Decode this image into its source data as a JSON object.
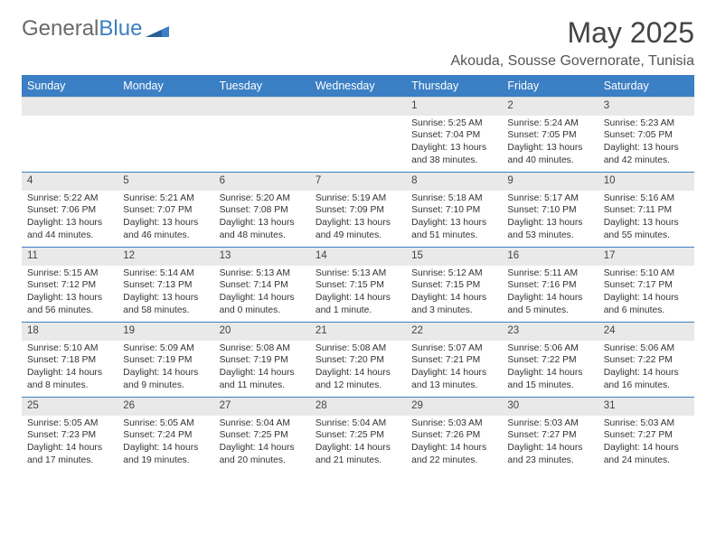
{
  "logo": {
    "text1": "General",
    "text2": "Blue"
  },
  "title": "May 2025",
  "subtitle": "Akouda, Sousse Governorate, Tunisia",
  "day_headers": [
    "Sunday",
    "Monday",
    "Tuesday",
    "Wednesday",
    "Thursday",
    "Friday",
    "Saturday"
  ],
  "colors": {
    "header_bg": "#3b7fc4",
    "header_text": "#ffffff",
    "daynum_bg": "#e9e9e9",
    "row_border": "#3b7fc4"
  },
  "weeks": [
    [
      null,
      null,
      null,
      null,
      {
        "day": "1",
        "sunrise": "Sunrise: 5:25 AM",
        "sunset": "Sunset: 7:04 PM",
        "daylight": "Daylight: 13 hours and 38 minutes."
      },
      {
        "day": "2",
        "sunrise": "Sunrise: 5:24 AM",
        "sunset": "Sunset: 7:05 PM",
        "daylight": "Daylight: 13 hours and 40 minutes."
      },
      {
        "day": "3",
        "sunrise": "Sunrise: 5:23 AM",
        "sunset": "Sunset: 7:05 PM",
        "daylight": "Daylight: 13 hours and 42 minutes."
      }
    ],
    [
      {
        "day": "4",
        "sunrise": "Sunrise: 5:22 AM",
        "sunset": "Sunset: 7:06 PM",
        "daylight": "Daylight: 13 hours and 44 minutes."
      },
      {
        "day": "5",
        "sunrise": "Sunrise: 5:21 AM",
        "sunset": "Sunset: 7:07 PM",
        "daylight": "Daylight: 13 hours and 46 minutes."
      },
      {
        "day": "6",
        "sunrise": "Sunrise: 5:20 AM",
        "sunset": "Sunset: 7:08 PM",
        "daylight": "Daylight: 13 hours and 48 minutes."
      },
      {
        "day": "7",
        "sunrise": "Sunrise: 5:19 AM",
        "sunset": "Sunset: 7:09 PM",
        "daylight": "Daylight: 13 hours and 49 minutes."
      },
      {
        "day": "8",
        "sunrise": "Sunrise: 5:18 AM",
        "sunset": "Sunset: 7:10 PM",
        "daylight": "Daylight: 13 hours and 51 minutes."
      },
      {
        "day": "9",
        "sunrise": "Sunrise: 5:17 AM",
        "sunset": "Sunset: 7:10 PM",
        "daylight": "Daylight: 13 hours and 53 minutes."
      },
      {
        "day": "10",
        "sunrise": "Sunrise: 5:16 AM",
        "sunset": "Sunset: 7:11 PM",
        "daylight": "Daylight: 13 hours and 55 minutes."
      }
    ],
    [
      {
        "day": "11",
        "sunrise": "Sunrise: 5:15 AM",
        "sunset": "Sunset: 7:12 PM",
        "daylight": "Daylight: 13 hours and 56 minutes."
      },
      {
        "day": "12",
        "sunrise": "Sunrise: 5:14 AM",
        "sunset": "Sunset: 7:13 PM",
        "daylight": "Daylight: 13 hours and 58 minutes."
      },
      {
        "day": "13",
        "sunrise": "Sunrise: 5:13 AM",
        "sunset": "Sunset: 7:14 PM",
        "daylight": "Daylight: 14 hours and 0 minutes."
      },
      {
        "day": "14",
        "sunrise": "Sunrise: 5:13 AM",
        "sunset": "Sunset: 7:15 PM",
        "daylight": "Daylight: 14 hours and 1 minute."
      },
      {
        "day": "15",
        "sunrise": "Sunrise: 5:12 AM",
        "sunset": "Sunset: 7:15 PM",
        "daylight": "Daylight: 14 hours and 3 minutes."
      },
      {
        "day": "16",
        "sunrise": "Sunrise: 5:11 AM",
        "sunset": "Sunset: 7:16 PM",
        "daylight": "Daylight: 14 hours and 5 minutes."
      },
      {
        "day": "17",
        "sunrise": "Sunrise: 5:10 AM",
        "sunset": "Sunset: 7:17 PM",
        "daylight": "Daylight: 14 hours and 6 minutes."
      }
    ],
    [
      {
        "day": "18",
        "sunrise": "Sunrise: 5:10 AM",
        "sunset": "Sunset: 7:18 PM",
        "daylight": "Daylight: 14 hours and 8 minutes."
      },
      {
        "day": "19",
        "sunrise": "Sunrise: 5:09 AM",
        "sunset": "Sunset: 7:19 PM",
        "daylight": "Daylight: 14 hours and 9 minutes."
      },
      {
        "day": "20",
        "sunrise": "Sunrise: 5:08 AM",
        "sunset": "Sunset: 7:19 PM",
        "daylight": "Daylight: 14 hours and 11 minutes."
      },
      {
        "day": "21",
        "sunrise": "Sunrise: 5:08 AM",
        "sunset": "Sunset: 7:20 PM",
        "daylight": "Daylight: 14 hours and 12 minutes."
      },
      {
        "day": "22",
        "sunrise": "Sunrise: 5:07 AM",
        "sunset": "Sunset: 7:21 PM",
        "daylight": "Daylight: 14 hours and 13 minutes."
      },
      {
        "day": "23",
        "sunrise": "Sunrise: 5:06 AM",
        "sunset": "Sunset: 7:22 PM",
        "daylight": "Daylight: 14 hours and 15 minutes."
      },
      {
        "day": "24",
        "sunrise": "Sunrise: 5:06 AM",
        "sunset": "Sunset: 7:22 PM",
        "daylight": "Daylight: 14 hours and 16 minutes."
      }
    ],
    [
      {
        "day": "25",
        "sunrise": "Sunrise: 5:05 AM",
        "sunset": "Sunset: 7:23 PM",
        "daylight": "Daylight: 14 hours and 17 minutes."
      },
      {
        "day": "26",
        "sunrise": "Sunrise: 5:05 AM",
        "sunset": "Sunset: 7:24 PM",
        "daylight": "Daylight: 14 hours and 19 minutes."
      },
      {
        "day": "27",
        "sunrise": "Sunrise: 5:04 AM",
        "sunset": "Sunset: 7:25 PM",
        "daylight": "Daylight: 14 hours and 20 minutes."
      },
      {
        "day": "28",
        "sunrise": "Sunrise: 5:04 AM",
        "sunset": "Sunset: 7:25 PM",
        "daylight": "Daylight: 14 hours and 21 minutes."
      },
      {
        "day": "29",
        "sunrise": "Sunrise: 5:03 AM",
        "sunset": "Sunset: 7:26 PM",
        "daylight": "Daylight: 14 hours and 22 minutes."
      },
      {
        "day": "30",
        "sunrise": "Sunrise: 5:03 AM",
        "sunset": "Sunset: 7:27 PM",
        "daylight": "Daylight: 14 hours and 23 minutes."
      },
      {
        "day": "31",
        "sunrise": "Sunrise: 5:03 AM",
        "sunset": "Sunset: 7:27 PM",
        "daylight": "Daylight: 14 hours and 24 minutes."
      }
    ]
  ]
}
